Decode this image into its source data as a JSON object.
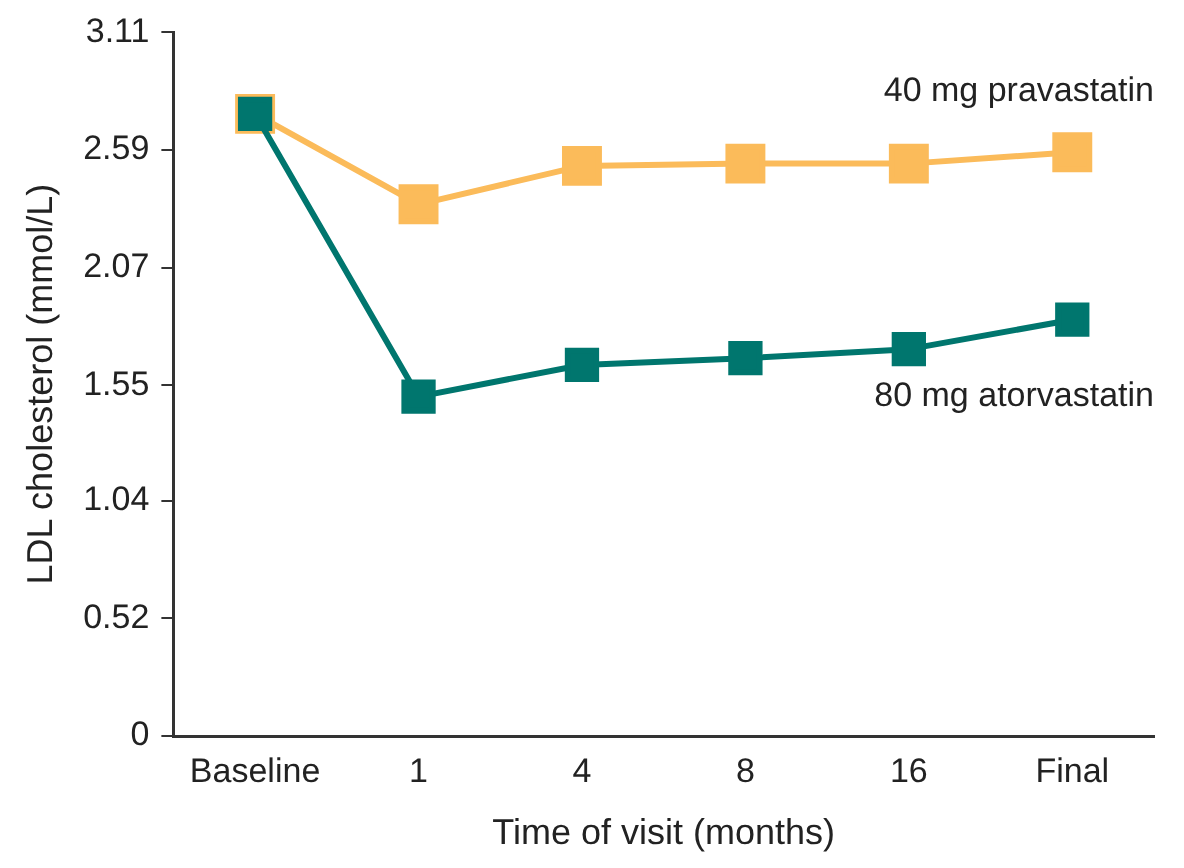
{
  "chart_data": {
    "type": "line",
    "xlabel": "Time of visit (months)",
    "ylabel": "LDL cholesterol (mmol/L)",
    "categories": [
      "Baseline",
      "1",
      "4",
      "8",
      "16",
      "Final"
    ],
    "series": [
      {
        "name": "40 mg pravastatin",
        "color": "#fbbb5a",
        "values": [
          2.75,
          2.35,
          2.52,
          2.53,
          2.53,
          2.58
        ]
      },
      {
        "name": "80 mg atorvastatin",
        "color": "#00766e",
        "values": [
          2.75,
          1.5,
          1.64,
          1.67,
          1.71,
          1.84
        ]
      }
    ],
    "ylim": [
      0,
      3.11
    ],
    "yticks": [
      0,
      0.52,
      1.04,
      1.55,
      2.07,
      2.59,
      3.11
    ],
    "grid": false,
    "legend": false,
    "marker": "square",
    "line_style": "solid"
  }
}
